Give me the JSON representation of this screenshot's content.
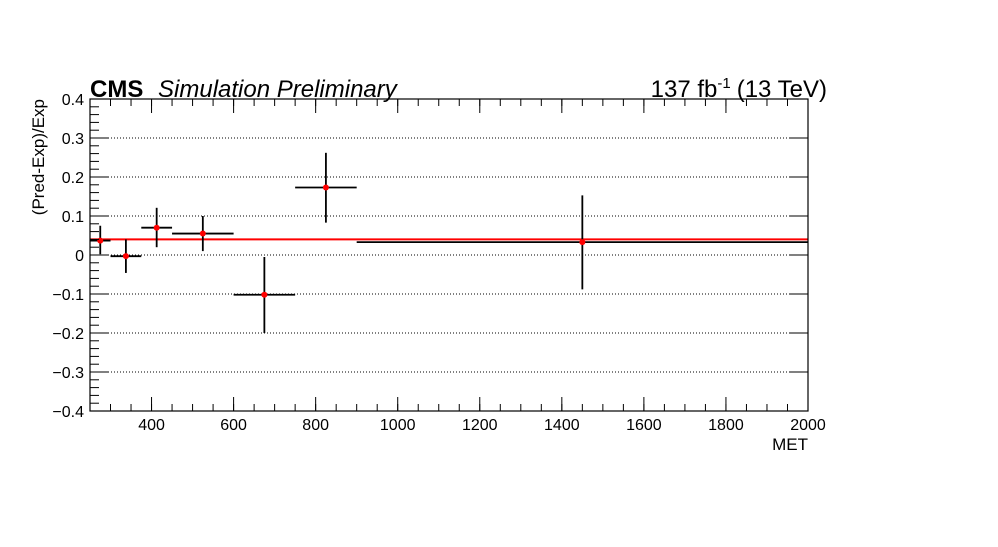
{
  "header": {
    "experiment": "CMS",
    "status": "Simulation Preliminary",
    "lumi_value": "137 fb",
    "lumi_exponent": "-1",
    "energy": "(13 TeV)"
  },
  "chart_data": {
    "type": "scatter",
    "xlabel": "MET",
    "ylabel": "(Pred-Exp)/Exp",
    "xlim": [
      250,
      2000
    ],
    "ylim": [
      -0.4,
      0.4
    ],
    "x_ticks": [
      400,
      600,
      800,
      1000,
      1200,
      1400,
      1600,
      1800,
      2000
    ],
    "x_tick_labels": [
      "400",
      "600",
      "800",
      "1000",
      "1200",
      "1400",
      "1600",
      "1800",
      "2000"
    ],
    "y_ticks": [
      -0.4,
      -0.3,
      -0.2,
      -0.1,
      0,
      0.1,
      0.2,
      0.3,
      0.4
    ],
    "y_tick_labels": [
      "−0.4",
      "−0.3",
      "−0.2",
      "−0.1",
      "0",
      "0.1",
      "0.2",
      "0.3",
      "0.4"
    ],
    "grid": "horizontal dotted",
    "points": [
      {
        "x": 275,
        "xlow": 250,
        "xhigh": 300,
        "y": 0.037,
        "ylow": 0.002,
        "yhigh": 0.075
      },
      {
        "x": 337.5,
        "xlow": 300,
        "xhigh": 375,
        "y": -0.003,
        "ylow": -0.046,
        "yhigh": 0.04
      },
      {
        "x": 412.5,
        "xlow": 375,
        "xhigh": 450,
        "y": 0.07,
        "ylow": 0.02,
        "yhigh": 0.121
      },
      {
        "x": 525,
        "xlow": 450,
        "xhigh": 600,
        "y": 0.055,
        "ylow": 0.01,
        "yhigh": 0.1
      },
      {
        "x": 675,
        "xlow": 600,
        "xhigh": 750,
        "y": -0.102,
        "ylow": -0.2,
        "yhigh": -0.005
      },
      {
        "x": 825,
        "xlow": 750,
        "xhigh": 900,
        "y": 0.173,
        "ylow": 0.083,
        "yhigh": 0.262
      },
      {
        "x": 1450,
        "xlow": 900,
        "xhigh": 2000,
        "y": 0.033,
        "ylow": -0.088,
        "yhigh": 0.153
      }
    ],
    "fit_line": {
      "y": 0.04,
      "color": "#ff0000"
    },
    "marker_color": "#ff0000",
    "errorbar_color": "#000000"
  }
}
